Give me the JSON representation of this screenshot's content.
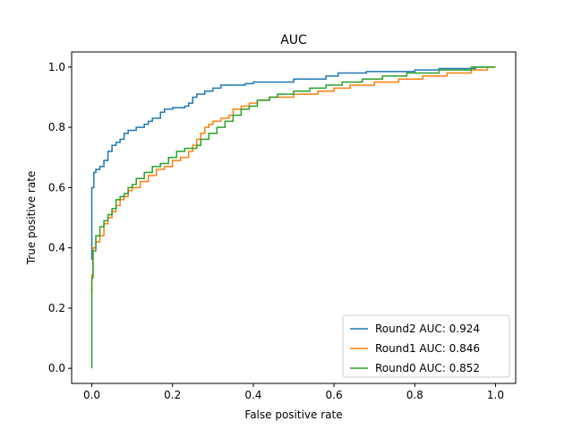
{
  "chart_data": {
    "type": "line",
    "title": "AUC",
    "xlabel": "False positive rate",
    "ylabel": "True positive rate",
    "xlim": [
      -0.05,
      1.05
    ],
    "ylim": [
      -0.05,
      1.05
    ],
    "xticks": [
      "0.0",
      "0.2",
      "0.4",
      "0.6",
      "0.8",
      "1.0"
    ],
    "yticks": [
      "0.0",
      "0.2",
      "0.4",
      "0.6",
      "0.8",
      "1.0"
    ],
    "grid": false,
    "legend_position": "bottom-right",
    "series": [
      {
        "name": "Round2 AUC: 0.924",
        "color": "#1f77b4",
        "points": [
          [
            0,
            0.36
          ],
          [
            0,
            0.6
          ],
          [
            0.005,
            0.6
          ],
          [
            0.005,
            0.65
          ],
          [
            0.01,
            0.65
          ],
          [
            0.01,
            0.66
          ],
          [
            0.02,
            0.66
          ],
          [
            0.02,
            0.67
          ],
          [
            0.03,
            0.67
          ],
          [
            0.03,
            0.69
          ],
          [
            0.04,
            0.69
          ],
          [
            0.04,
            0.72
          ],
          [
            0.05,
            0.72
          ],
          [
            0.05,
            0.74
          ],
          [
            0.06,
            0.74
          ],
          [
            0.06,
            0.75
          ],
          [
            0.07,
            0.75
          ],
          [
            0.07,
            0.76
          ],
          [
            0.08,
            0.76
          ],
          [
            0.08,
            0.78
          ],
          [
            0.09,
            0.78
          ],
          [
            0.09,
            0.79
          ],
          [
            0.11,
            0.79
          ],
          [
            0.11,
            0.8
          ],
          [
            0.13,
            0.8
          ],
          [
            0.13,
            0.81
          ],
          [
            0.14,
            0.81
          ],
          [
            0.14,
            0.82
          ],
          [
            0.15,
            0.82
          ],
          [
            0.15,
            0.83
          ],
          [
            0.17,
            0.83
          ],
          [
            0.17,
            0.85
          ],
          [
            0.18,
            0.85
          ],
          [
            0.18,
            0.86
          ],
          [
            0.2,
            0.86
          ],
          [
            0.2,
            0.865
          ],
          [
            0.23,
            0.865
          ],
          [
            0.23,
            0.87
          ],
          [
            0.24,
            0.87
          ],
          [
            0.24,
            0.88
          ],
          [
            0.25,
            0.88
          ],
          [
            0.25,
            0.9
          ],
          [
            0.26,
            0.9
          ],
          [
            0.26,
            0.91
          ],
          [
            0.28,
            0.91
          ],
          [
            0.28,
            0.92
          ],
          [
            0.3,
            0.92
          ],
          [
            0.3,
            0.93
          ],
          [
            0.32,
            0.93
          ],
          [
            0.32,
            0.94
          ],
          [
            0.38,
            0.94
          ],
          [
            0.38,
            0.945
          ],
          [
            0.4,
            0.945
          ],
          [
            0.4,
            0.95
          ],
          [
            0.5,
            0.95
          ],
          [
            0.5,
            0.96
          ],
          [
            0.58,
            0.96
          ],
          [
            0.58,
            0.97
          ],
          [
            0.61,
            0.97
          ],
          [
            0.61,
            0.98
          ],
          [
            0.68,
            0.98
          ],
          [
            0.68,
            0.985
          ],
          [
            0.8,
            0.985
          ],
          [
            0.8,
            0.99
          ],
          [
            0.86,
            0.99
          ],
          [
            0.86,
            0.995
          ],
          [
            0.95,
            0.995
          ],
          [
            0.95,
            1.0
          ],
          [
            1.0,
            1.0
          ]
        ]
      },
      {
        "name": "Round1 AUC: 0.846",
        "color": "#ff7f0e",
        "points": [
          [
            0,
            0.25
          ],
          [
            0,
            0.31
          ],
          [
            0.003,
            0.31
          ],
          [
            0.003,
            0.4
          ],
          [
            0.01,
            0.4
          ],
          [
            0.01,
            0.42
          ],
          [
            0.02,
            0.42
          ],
          [
            0.02,
            0.44
          ],
          [
            0.03,
            0.44
          ],
          [
            0.03,
            0.48
          ],
          [
            0.04,
            0.48
          ],
          [
            0.04,
            0.5
          ],
          [
            0.05,
            0.5
          ],
          [
            0.05,
            0.52
          ],
          [
            0.06,
            0.52
          ],
          [
            0.06,
            0.54
          ],
          [
            0.07,
            0.54
          ],
          [
            0.07,
            0.56
          ],
          [
            0.08,
            0.56
          ],
          [
            0.08,
            0.57
          ],
          [
            0.09,
            0.57
          ],
          [
            0.09,
            0.59
          ],
          [
            0.1,
            0.59
          ],
          [
            0.1,
            0.6
          ],
          [
            0.12,
            0.6
          ],
          [
            0.12,
            0.62
          ],
          [
            0.14,
            0.62
          ],
          [
            0.14,
            0.64
          ],
          [
            0.16,
            0.64
          ],
          [
            0.16,
            0.66
          ],
          [
            0.18,
            0.66
          ],
          [
            0.18,
            0.67
          ],
          [
            0.2,
            0.67
          ],
          [
            0.2,
            0.69
          ],
          [
            0.22,
            0.69
          ],
          [
            0.22,
            0.7
          ],
          [
            0.24,
            0.7
          ],
          [
            0.24,
            0.72
          ],
          [
            0.25,
            0.72
          ],
          [
            0.25,
            0.74
          ],
          [
            0.26,
            0.74
          ],
          [
            0.26,
            0.76
          ],
          [
            0.27,
            0.76
          ],
          [
            0.27,
            0.78
          ],
          [
            0.28,
            0.78
          ],
          [
            0.28,
            0.8
          ],
          [
            0.29,
            0.8
          ],
          [
            0.29,
            0.81
          ],
          [
            0.3,
            0.81
          ],
          [
            0.3,
            0.82
          ],
          [
            0.32,
            0.82
          ],
          [
            0.32,
            0.83
          ],
          [
            0.34,
            0.83
          ],
          [
            0.34,
            0.84
          ],
          [
            0.35,
            0.84
          ],
          [
            0.35,
            0.86
          ],
          [
            0.37,
            0.86
          ],
          [
            0.37,
            0.87
          ],
          [
            0.39,
            0.87
          ],
          [
            0.39,
            0.88
          ],
          [
            0.41,
            0.88
          ],
          [
            0.41,
            0.89
          ],
          [
            0.44,
            0.89
          ],
          [
            0.44,
            0.9
          ],
          [
            0.5,
            0.9
          ],
          [
            0.5,
            0.91
          ],
          [
            0.56,
            0.91
          ],
          [
            0.56,
            0.92
          ],
          [
            0.6,
            0.92
          ],
          [
            0.6,
            0.93
          ],
          [
            0.64,
            0.93
          ],
          [
            0.64,
            0.94
          ],
          [
            0.7,
            0.94
          ],
          [
            0.7,
            0.95
          ],
          [
            0.76,
            0.95
          ],
          [
            0.76,
            0.96
          ],
          [
            0.82,
            0.96
          ],
          [
            0.82,
            0.97
          ],
          [
            0.88,
            0.97
          ],
          [
            0.88,
            0.98
          ],
          [
            0.94,
            0.98
          ],
          [
            0.94,
            0.99
          ],
          [
            0.98,
            0.99
          ],
          [
            0.98,
            1.0
          ],
          [
            1.0,
            1.0
          ]
        ]
      },
      {
        "name": "Round0 AUC: 0.852",
        "color": "#2ca02c",
        "points": [
          [
            0,
            0.0
          ],
          [
            0,
            0.3
          ],
          [
            0.003,
            0.3
          ],
          [
            0.003,
            0.39
          ],
          [
            0.01,
            0.39
          ],
          [
            0.01,
            0.44
          ],
          [
            0.02,
            0.44
          ],
          [
            0.02,
            0.47
          ],
          [
            0.03,
            0.47
          ],
          [
            0.03,
            0.49
          ],
          [
            0.04,
            0.49
          ],
          [
            0.04,
            0.51
          ],
          [
            0.05,
            0.51
          ],
          [
            0.05,
            0.53
          ],
          [
            0.06,
            0.53
          ],
          [
            0.06,
            0.56
          ],
          [
            0.07,
            0.56
          ],
          [
            0.07,
            0.57
          ],
          [
            0.08,
            0.57
          ],
          [
            0.08,
            0.58
          ],
          [
            0.09,
            0.58
          ],
          [
            0.09,
            0.6
          ],
          [
            0.1,
            0.6
          ],
          [
            0.1,
            0.61
          ],
          [
            0.11,
            0.61
          ],
          [
            0.11,
            0.63
          ],
          [
            0.13,
            0.63
          ],
          [
            0.13,
            0.65
          ],
          [
            0.15,
            0.65
          ],
          [
            0.15,
            0.67
          ],
          [
            0.17,
            0.67
          ],
          [
            0.17,
            0.68
          ],
          [
            0.19,
            0.68
          ],
          [
            0.19,
            0.7
          ],
          [
            0.21,
            0.7
          ],
          [
            0.21,
            0.72
          ],
          [
            0.23,
            0.72
          ],
          [
            0.23,
            0.73
          ],
          [
            0.26,
            0.73
          ],
          [
            0.26,
            0.74
          ],
          [
            0.27,
            0.74
          ],
          [
            0.27,
            0.76
          ],
          [
            0.29,
            0.76
          ],
          [
            0.29,
            0.78
          ],
          [
            0.31,
            0.78
          ],
          [
            0.31,
            0.8
          ],
          [
            0.33,
            0.8
          ],
          [
            0.33,
            0.82
          ],
          [
            0.35,
            0.82
          ],
          [
            0.35,
            0.84
          ],
          [
            0.37,
            0.84
          ],
          [
            0.37,
            0.86
          ],
          [
            0.39,
            0.86
          ],
          [
            0.39,
            0.87
          ],
          [
            0.41,
            0.87
          ],
          [
            0.41,
            0.89
          ],
          [
            0.44,
            0.89
          ],
          [
            0.44,
            0.9
          ],
          [
            0.46,
            0.9
          ],
          [
            0.46,
            0.91
          ],
          [
            0.5,
            0.91
          ],
          [
            0.5,
            0.92
          ],
          [
            0.54,
            0.92
          ],
          [
            0.54,
            0.93
          ],
          [
            0.58,
            0.93
          ],
          [
            0.58,
            0.94
          ],
          [
            0.62,
            0.94
          ],
          [
            0.62,
            0.95
          ],
          [
            0.67,
            0.95
          ],
          [
            0.67,
            0.96
          ],
          [
            0.72,
            0.96
          ],
          [
            0.72,
            0.97
          ],
          [
            0.78,
            0.97
          ],
          [
            0.78,
            0.98
          ],
          [
            0.86,
            0.98
          ],
          [
            0.86,
            0.99
          ],
          [
            0.94,
            0.99
          ],
          [
            0.94,
            1.0
          ],
          [
            1.0,
            1.0
          ]
        ]
      }
    ]
  }
}
